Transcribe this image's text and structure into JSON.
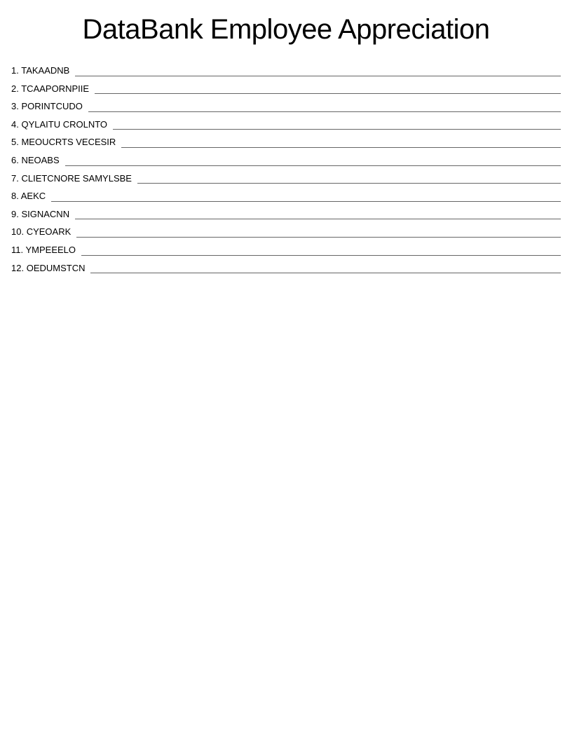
{
  "title": "DataBank Employee Appreciation",
  "title_fontsize": 40,
  "item_fontsize": 13,
  "background_color": "#ffffff",
  "text_color": "#000000",
  "line_color": "#666666",
  "items": [
    {
      "number": "1",
      "word": "TAKAADNB"
    },
    {
      "number": "2",
      "word": "TCAAPORNPIIE"
    },
    {
      "number": "3",
      "word": "PORINTCUDO"
    },
    {
      "number": "4",
      "word": "QYLAITU CROLNTO"
    },
    {
      "number": "5",
      "word": "MEOUCRTS VECESIR"
    },
    {
      "number": "6",
      "word": "NEOABS"
    },
    {
      "number": "7",
      "word": "CLIETCNORE SAMYLSBE"
    },
    {
      "number": "8",
      "word": "AEKC"
    },
    {
      "number": "9",
      "word": "SIGNACNN"
    },
    {
      "number": "10",
      "word": "CYEOARK"
    },
    {
      "number": "11",
      "word": "YMPEEELO"
    },
    {
      "number": "12",
      "word": "OEDUMSTCN"
    }
  ]
}
